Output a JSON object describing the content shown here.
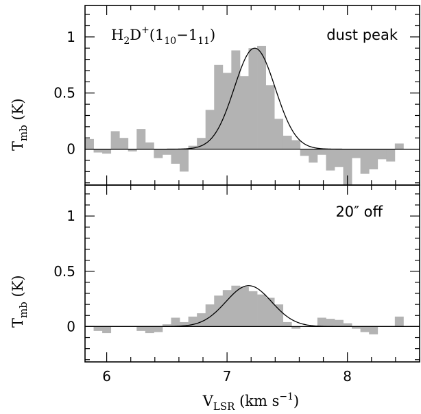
{
  "chart_data": [
    {
      "type": "bar",
      "panel": "top",
      "annotation_left": {
        "base": "H",
        "sub1": "2",
        "mid": "D",
        "sup": "+",
        "open": "(1",
        "sub2": "10",
        "dash": "−1",
        "sub3": "11",
        "close": ")"
      },
      "annotation_right": "dust peak",
      "ylabel": {
        "main": "T",
        "sub": "mb",
        "unit": " (K)"
      },
      "xlim": [
        5.82,
        8.6
      ],
      "ylim": [
        -0.32,
        1.28
      ],
      "yticks": [
        0,
        0.5,
        1
      ],
      "ytick_labels": [
        "0",
        "0.5",
        "1"
      ],
      "bin_width": 0.0715,
      "bin_start": 5.82,
      "values": [
        0.09,
        -0.03,
        -0.04,
        0.16,
        0.1,
        -0.02,
        0.18,
        0.06,
        -0.08,
        -0.05,
        -0.13,
        -0.2,
        0.03,
        0.1,
        0.35,
        0.75,
        0.68,
        0.88,
        0.65,
        0.9,
        0.92,
        0.57,
        0.27,
        0.12,
        0.08,
        -0.06,
        -0.12,
        -0.05,
        -0.19,
        -0.16,
        -0.32,
        -0.08,
        -0.22,
        -0.18,
        -0.09,
        -0.11,
        0.05
      ],
      "gaussian": {
        "amplitude": 0.9,
        "center": 7.23,
        "sigma": 0.17
      }
    },
    {
      "type": "bar",
      "panel": "bottom",
      "annotation_right": "20″ off",
      "ylabel": {
        "main": "T",
        "sub": "mb",
        "unit": " (K)"
      },
      "xlabel": {
        "main": "V",
        "sub": "LSR",
        "unit": " (km s",
        "sup": "−1",
        "close": ")"
      },
      "xlim": [
        5.82,
        8.6
      ],
      "ylim": [
        -0.32,
        1.28
      ],
      "xticks": [
        6,
        7,
        8
      ],
      "xtick_labels": [
        "6",
        "7",
        "8"
      ],
      "yticks": [
        0,
        0.5,
        1
      ],
      "ytick_labels": [
        "0",
        "0.5",
        "1"
      ],
      "bin_width": 0.0715,
      "bin_start": 5.82,
      "values": [
        0.0,
        -0.04,
        -0.06,
        0.0,
        0.0,
        0.0,
        -0.04,
        -0.06,
        -0.05,
        0.02,
        0.08,
        0.04,
        0.09,
        0.12,
        0.2,
        0.28,
        0.33,
        0.37,
        0.36,
        0.32,
        0.29,
        0.26,
        0.2,
        0.04,
        -0.02,
        0.0,
        0.0,
        0.08,
        0.07,
        0.06,
        0.03,
        -0.02,
        -0.05,
        -0.07,
        0.0,
        0.0,
        0.09
      ],
      "gaussian": {
        "amplitude": 0.37,
        "center": 7.18,
        "sigma": 0.19
      }
    }
  ]
}
